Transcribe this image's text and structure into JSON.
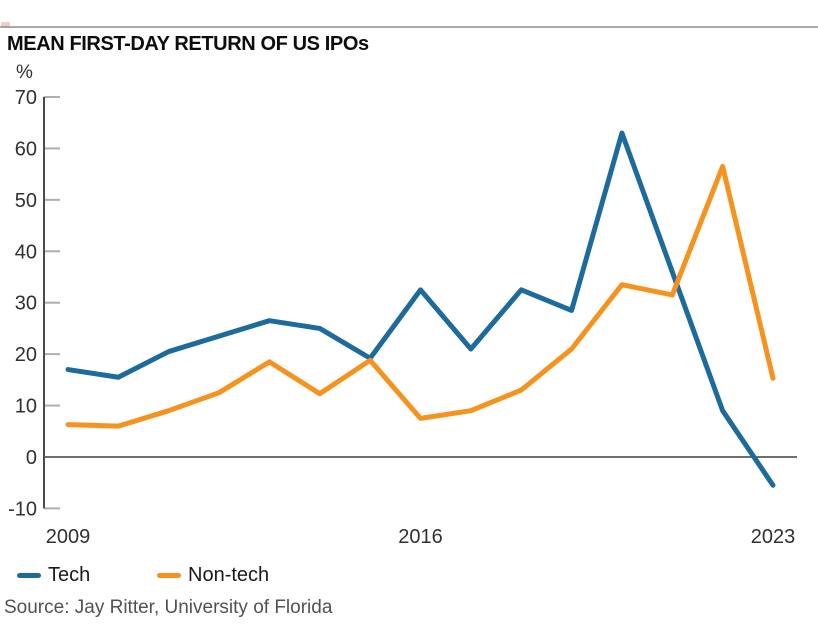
{
  "title": "MEAN FIRST-DAY RETURN OF US IPOs",
  "y_axis": {
    "unit": "%"
  },
  "legend": [
    {
      "label": "Tech",
      "color": "#1c6b9c"
    },
    {
      "label": "Non-tech",
      "color": "#f6921e"
    }
  ],
  "source": "Source: Jay Ritter, University of Florida",
  "colors": {
    "tech_line": "#1c6b9c",
    "nontech_line": "#f6921e",
    "axis_line": "#4a4a4a",
    "tick": "#b0aeab",
    "zero_line": "#595959",
    "top_rule": "#a9a9a9",
    "axis_text": "#33302e",
    "source_text": "#4f5256"
  },
  "chart_data": {
    "type": "line",
    "title": "MEAN FIRST-DAY RETURN OF US IPOs",
    "xlabel": "",
    "ylabel": "%",
    "ylim": [
      -10,
      70
    ],
    "yticks": [
      70,
      60,
      50,
      40,
      30,
      20,
      10,
      0,
      -10
    ],
    "xticks": [
      2009,
      2016,
      2023
    ],
    "grid": false,
    "zero_line": true,
    "legend_position": "bottom-left",
    "x": [
      2009,
      2010,
      2011,
      2012,
      2013,
      2014,
      2015,
      2016,
      2017,
      2018,
      2019,
      2020,
      2021,
      2022,
      2023
    ],
    "series": [
      {
        "name": "Tech",
        "color": "#1c6b9c",
        "values": [
          17,
          15.5,
          20.5,
          23.5,
          26.5,
          25,
          19.2,
          32.5,
          21,
          32.5,
          28.5,
          63,
          36,
          9,
          -5.5
        ]
      },
      {
        "name": "Non-tech",
        "color": "#f6921e",
        "values": [
          6.3,
          6,
          9,
          12.5,
          18.5,
          12.3,
          18.8,
          7.5,
          9,
          13,
          21,
          33.5,
          31.5,
          56.5,
          15.3
        ]
      }
    ]
  }
}
